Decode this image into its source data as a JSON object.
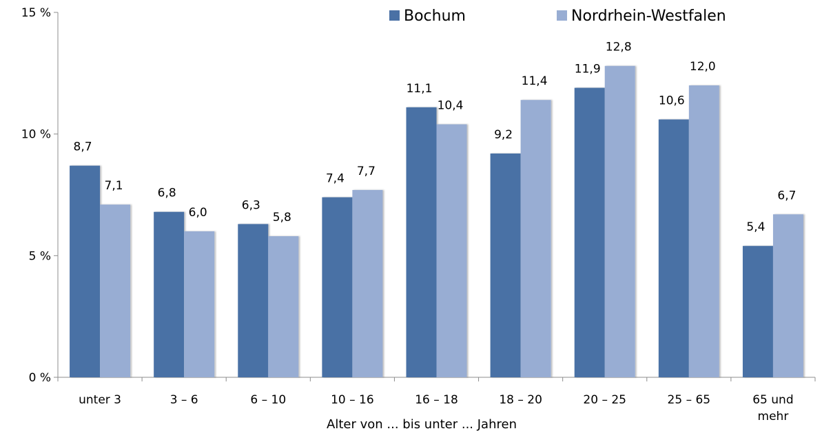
{
  "chart_data": {
    "type": "bar",
    "categories": [
      "unter 3",
      "3 –  6",
      "6 – 10",
      "10 – 16",
      "16 – 18",
      "18 – 20",
      "20 – 25",
      "25 – 65",
      "65 und mehr"
    ],
    "series": [
      {
        "name": "Bochum",
        "color": "#4a71a5",
        "values": [
          8.7,
          6.8,
          6.3,
          7.4,
          11.1,
          9.2,
          11.9,
          10.6,
          5.4
        ],
        "labels": [
          "8,7",
          "6,8",
          "6,3",
          "7,4",
          "11,1",
          "9,2",
          "11,9",
          "10,6",
          "5,4"
        ]
      },
      {
        "name": "Nordrhein-Westfalen",
        "color": "#98add3",
        "values": [
          7.1,
          6.0,
          5.8,
          7.7,
          10.4,
          11.4,
          12.8,
          12.0,
          6.7
        ],
        "labels": [
          "7,1",
          "6,0",
          "5,8",
          "7,7",
          "10,4",
          "11,4",
          "12,8",
          "12,0",
          "6,7"
        ]
      }
    ],
    "ylim": [
      0,
      15
    ],
    "yticks": [
      0,
      5,
      10,
      15
    ],
    "ytick_labels": [
      "0 %",
      "5 %",
      "10 %",
      "15 %"
    ],
    "xlabel": "Alter von ... bis unter ... Jahren",
    "legend_position": "top-right",
    "grid": false
  }
}
